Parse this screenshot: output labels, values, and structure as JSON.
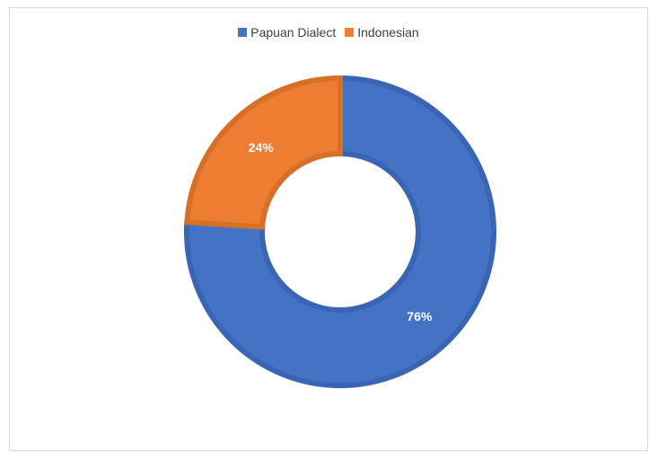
{
  "chart_data": {
    "type": "pie",
    "variant": "donut",
    "title": "",
    "legend_position": "top",
    "categories": [
      "Papuan Dialect",
      "Indonesian"
    ],
    "values": [
      76,
      24
    ],
    "labels": [
      "76%",
      "24%"
    ],
    "colors": [
      "#4472c4",
      "#ed7d31"
    ],
    "border_colors": [
      "#3a64b4",
      "#d66f28"
    ]
  }
}
